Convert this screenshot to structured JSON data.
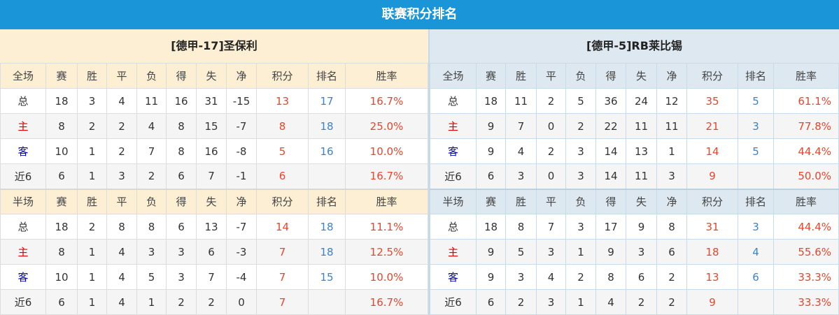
{
  "title": "联赛积分排名",
  "colors": {
    "title_bg": "#1a96d8",
    "points": "#e8452c",
    "rank": "#3d82c4",
    "home": "#dd0000",
    "away": "#0000cc"
  },
  "teams": [
    {
      "name": "[德甲-17]圣保利",
      "full": {
        "header": [
          "全场",
          "赛",
          "胜",
          "平",
          "负",
          "得",
          "失",
          "净",
          "积分",
          "排名",
          "胜率"
        ],
        "rows": [
          [
            "总",
            "18",
            "3",
            "4",
            "11",
            "16",
            "31",
            "-15",
            "13",
            "17",
            "16.7%"
          ],
          [
            "主",
            "8",
            "2",
            "2",
            "4",
            "8",
            "15",
            "-7",
            "8",
            "18",
            "25.0%"
          ],
          [
            "客",
            "10",
            "1",
            "2",
            "7",
            "8",
            "16",
            "-8",
            "5",
            "16",
            "10.0%"
          ],
          [
            "近6",
            "6",
            "1",
            "3",
            "2",
            "6",
            "7",
            "-1",
            "6",
            "",
            "16.7%"
          ]
        ]
      },
      "half": {
        "header": [
          "半场",
          "赛",
          "胜",
          "平",
          "负",
          "得",
          "失",
          "净",
          "积分",
          "排名",
          "胜率"
        ],
        "rows": [
          [
            "总",
            "18",
            "2",
            "8",
            "8",
            "6",
            "13",
            "-7",
            "14",
            "18",
            "11.1%"
          ],
          [
            "主",
            "8",
            "1",
            "4",
            "3",
            "3",
            "6",
            "-3",
            "7",
            "18",
            "12.5%"
          ],
          [
            "客",
            "10",
            "1",
            "4",
            "5",
            "3",
            "7",
            "-4",
            "7",
            "15",
            "10.0%"
          ],
          [
            "近6",
            "6",
            "1",
            "4",
            "1",
            "2",
            "2",
            "0",
            "7",
            "",
            "16.7%"
          ]
        ]
      }
    },
    {
      "name": "[德甲-5]RB莱比锡",
      "full": {
        "header": [
          "全场",
          "赛",
          "胜",
          "平",
          "负",
          "得",
          "失",
          "净",
          "积分",
          "排名",
          "胜率"
        ],
        "rows": [
          [
            "总",
            "18",
            "11",
            "2",
            "5",
            "36",
            "24",
            "12",
            "35",
            "5",
            "61.1%"
          ],
          [
            "主",
            "9",
            "7",
            "0",
            "2",
            "22",
            "11",
            "11",
            "21",
            "3",
            "77.8%"
          ],
          [
            "客",
            "9",
            "4",
            "2",
            "3",
            "14",
            "13",
            "1",
            "14",
            "5",
            "44.4%"
          ],
          [
            "近6",
            "6",
            "3",
            "0",
            "3",
            "14",
            "11",
            "3",
            "9",
            "",
            "50.0%"
          ]
        ]
      },
      "half": {
        "header": [
          "半场",
          "赛",
          "胜",
          "平",
          "负",
          "得",
          "失",
          "净",
          "积分",
          "排名",
          "胜率"
        ],
        "rows": [
          [
            "总",
            "18",
            "8",
            "7",
            "3",
            "17",
            "9",
            "8",
            "31",
            "3",
            "44.4%"
          ],
          [
            "主",
            "9",
            "5",
            "3",
            "1",
            "9",
            "3",
            "6",
            "18",
            "4",
            "55.6%"
          ],
          [
            "客",
            "9",
            "3",
            "4",
            "2",
            "8",
            "6",
            "2",
            "13",
            "6",
            "33.3%"
          ],
          [
            "近6",
            "6",
            "2",
            "3",
            "1",
            "4",
            "2",
            "2",
            "9",
            "",
            "33.3%"
          ]
        ]
      }
    }
  ]
}
